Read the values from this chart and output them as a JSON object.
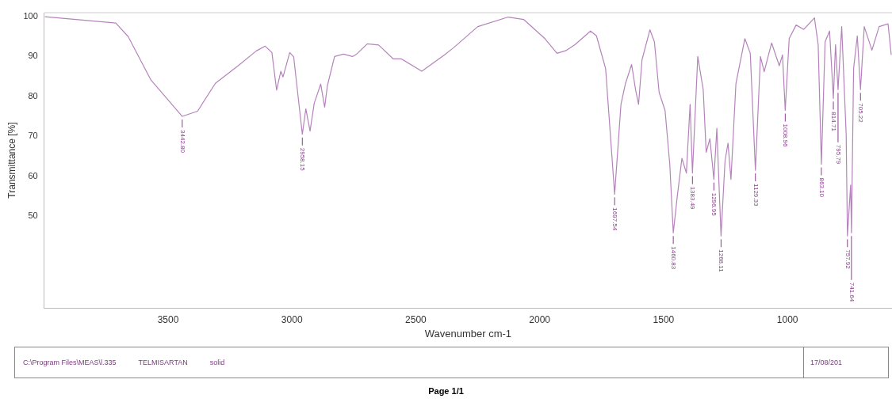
{
  "chart_data": {
    "type": "line",
    "xlabel": "Wavenumber cm-1",
    "ylabel": "Transmittance [%]",
    "color": "#b583bb",
    "marker": "none",
    "x": [
      3997,
      3711,
      3661,
      3569,
      3442.8,
      3381,
      3309,
      3217,
      3144,
      3108,
      3081,
      3062,
      3045,
      3036,
      3009,
      2993,
      2958.15,
      2944,
      2927,
      2910,
      2884,
      2868,
      2857,
      2828,
      2792,
      2756,
      2739,
      2696,
      2650,
      2591,
      2558,
      2476,
      2385,
      2348,
      2250,
      2127,
      2065,
      1979,
      1930,
      1894,
      1857,
      1795,
      1771,
      1734,
      1697.54,
      1672,
      1654,
      1629,
      1613,
      1601,
      1587,
      1555,
      1537,
      1518,
      1494,
      1475,
      1460.83,
      1445,
      1426,
      1408,
      1393,
      1383.49,
      1362,
      1340,
      1328,
      1313,
      1296.95,
      1285,
      1268.11,
      1252,
      1240,
      1228,
      1208,
      1172,
      1150,
      1129.33,
      1109,
      1094,
      1064,
      1033,
      1020,
      1008.96,
      993,
      965,
      934,
      891,
      876,
      863.1,
      848,
      830,
      814.71,
      806,
      795.79,
      781,
      763,
      757.92,
      745,
      741.64,
      733,
      718,
      705.22,
      690,
      659,
      630,
      594,
      581
    ],
    "values": [
      100,
      98.4,
      95,
      84.1,
      75,
      76.3,
      83.3,
      87.7,
      91.4,
      92.6,
      91,
      81.6,
      86.3,
      84.9,
      91,
      89.9,
      70.5,
      76.9,
      71.3,
      78.3,
      83.1,
      77.3,
      82.7,
      90,
      90.6,
      90,
      90.6,
      93.2,
      92.9,
      89.4,
      89.4,
      86.3,
      90.4,
      92.2,
      97.5,
      99.9,
      99.3,
      94.5,
      90.8,
      91.5,
      93,
      96.4,
      95.2,
      87,
      55.5,
      78,
      83.2,
      88,
      81.7,
      78,
      89.2,
      96.7,
      93.7,
      81,
      76.5,
      63,
      45.8,
      54.8,
      64.5,
      60.8,
      78,
      60.8,
      90,
      81.7,
      66,
      69.4,
      59.2,
      72,
      45,
      63.8,
      68.3,
      59.2,
      83.2,
      94.5,
      90.8,
      61.5,
      90,
      86.2,
      93.4,
      87.7,
      90.4,
      76.5,
      94.5,
      97.9,
      96.8,
      99.7,
      93,
      63,
      93.7,
      96.4,
      79.5,
      93,
      81.7,
      97.5,
      70.5,
      45,
      57.8,
      45.8,
      87,
      95.2,
      81.7,
      97.5,
      91.6,
      97.5,
      98.2,
      90.4
    ],
    "xlim": [
      4000,
      578
    ],
    "ylim": [
      27,
      101
    ],
    "xticks": [
      3500,
      3000,
      2500,
      2000,
      1500,
      1000
    ],
    "yticks": [
      50,
      60,
      70,
      80,
      90,
      100
    ],
    "annotations": [
      {
        "text": "3442.80",
        "x": 3442.8,
        "y": 75
      },
      {
        "text": "2958.15",
        "x": 2958.15,
        "y": 70.5
      },
      {
        "text": "1697.54",
        "x": 1697.54,
        "y": 55.5
      },
      {
        "text": "1460.83",
        "x": 1460.83,
        "y": 45.8
      },
      {
        "text": "1383.49",
        "x": 1383.49,
        "y": 60.8
      },
      {
        "text": "1296.95",
        "x": 1296.95,
        "y": 59.2
      },
      {
        "text": "1268.11",
        "x": 1268.11,
        "y": 45
      },
      {
        "text": "1129.33",
        "x": 1129.33,
        "y": 61.5
      },
      {
        "text": "1008.96",
        "x": 1008.96,
        "y": 76.5
      },
      {
        "text": "863.10",
        "x": 863.1,
        "y": 63
      },
      {
        "text": "814.71",
        "x": 814.71,
        "y": 79.5
      },
      {
        "text": "795.79",
        "x": 795.79,
        "y": 81.7
      },
      {
        "text": "757.92",
        "x": 757.92,
        "y": 45
      },
      {
        "text": "741.64",
        "x": 741.64,
        "y": 45.8
      },
      {
        "text": "705.22",
        "x": 705.22,
        "y": 81.7
      },
      "C:\\Program Files\\MEAS\\l.335",
      "TELMISARTAN",
      "solid",
      "17/08/201",
      "Page 1/1"
    ]
  }
}
